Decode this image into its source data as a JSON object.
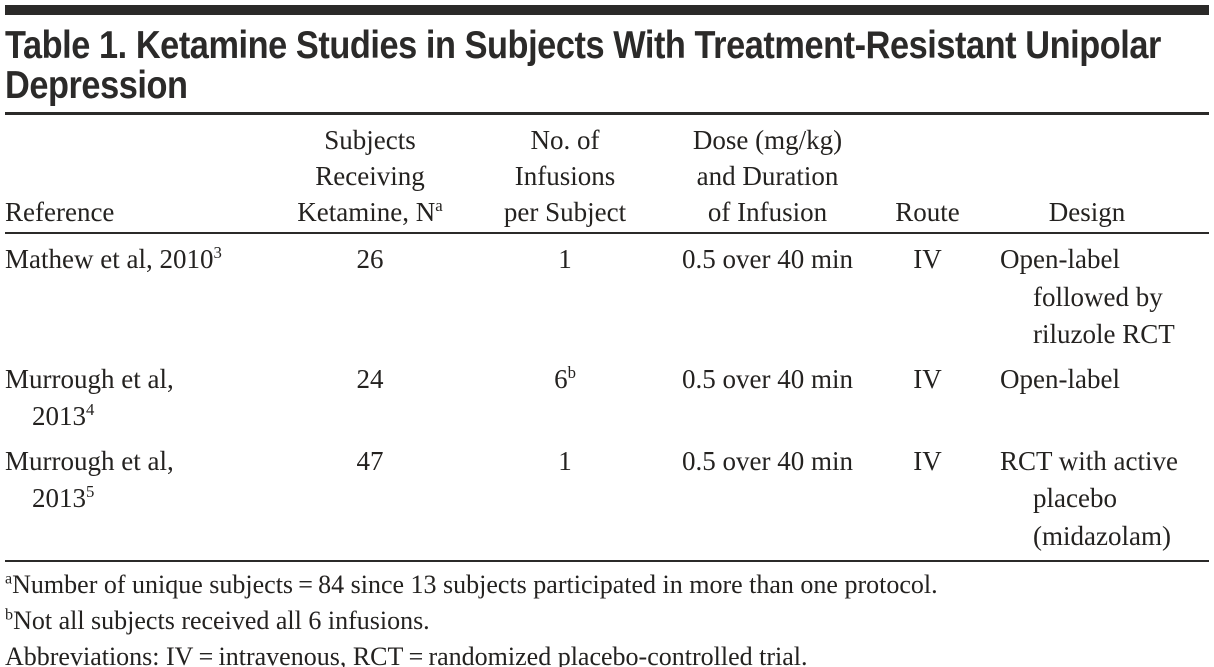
{
  "accent_color": "#2b2a29",
  "table": {
    "title_html": "Table 1. Ketamine Studies in Subjects With Treatment-Resistant Unipolar<br>Depression",
    "headers": {
      "reference": "Reference",
      "subjects_html": "Subjects<br>Receiving<br>Ketamine, N<sup>a</sup>",
      "infusions_html": "No. of<br>Infusions<br>per Subject",
      "dose_html": "Dose (mg/kg)<br>and Duration<br>of Infusion",
      "route": "Route",
      "design": "Design"
    },
    "rows": [
      {
        "reference_html": "Mathew et al, 2010<sup>3</sup>",
        "subjects_receiving_ketamine_n": "26",
        "infusions_per_subject_html": "1",
        "dose_and_duration": "0.5 over 40 min",
        "route": "IV",
        "design_html": "Open-label<br>followed by<br>riluzole RCT"
      },
      {
        "reference_html": "Murrough et al,<br>2013<sup>4</sup>",
        "subjects_receiving_ketamine_n": "24",
        "infusions_per_subject_html": "6<sup>b</sup>",
        "dose_and_duration": "0.5 over 40 min",
        "route": "IV",
        "design_html": "Open-label"
      },
      {
        "reference_html": "Murrough et al,<br>2013<sup>5</sup>",
        "subjects_receiving_ketamine_n": "47",
        "infusions_per_subject_html": "1",
        "dose_and_duration": "0.5 over 40 min",
        "route": "IV",
        "design_html": "RCT with active<br>placebo<br>(midazolam)"
      }
    ],
    "footnotes": [
      "<sup>a</sup>Number of unique subjects = 84 since 13 subjects participated in more than one protocol.",
      "<sup>b</sup>Not all subjects received all 6 infusions.",
      "Abbreviations: IV = intravenous, RCT = randomized placebo-controlled trial."
    ]
  }
}
